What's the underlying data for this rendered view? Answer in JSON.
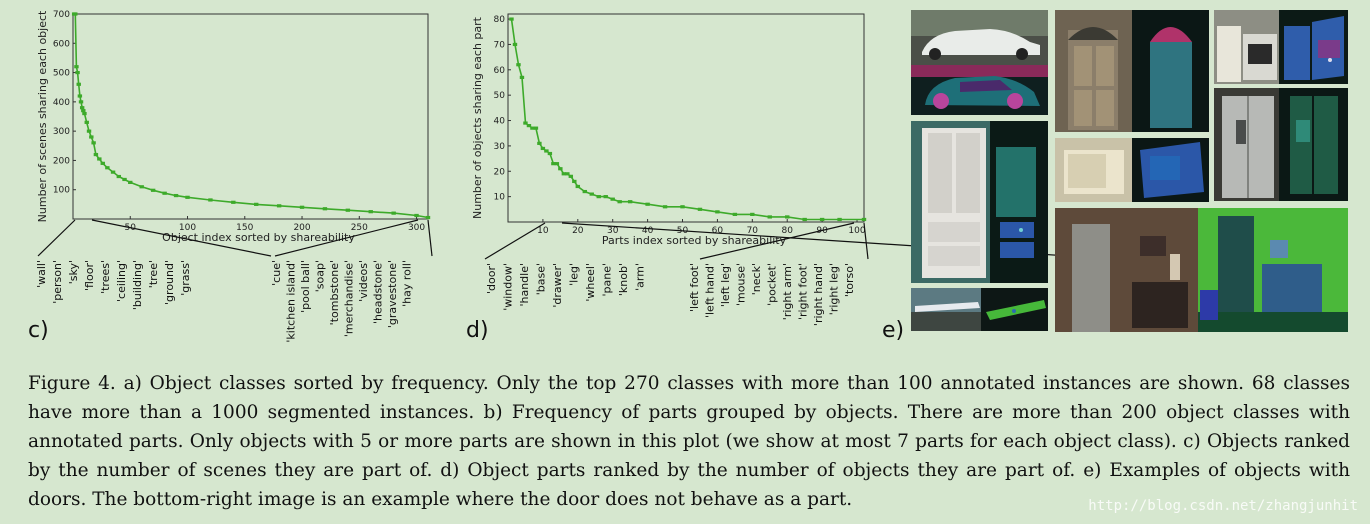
{
  "charts": [
    {
      "id": "c",
      "panel_label": "c)",
      "chart_data": {
        "type": "line",
        "xlabel": "Object index sorted by shareability",
        "ylabel": "Number of scenes sharing each object",
        "xlim": [
          0,
          310
        ],
        "ylim": [
          0,
          700
        ],
        "xticks": [
          50,
          100,
          150,
          200,
          250,
          300
        ],
        "yticks": [
          100,
          200,
          300,
          400,
          500,
          600,
          700
        ],
        "grid": false,
        "color": "#3daa2a",
        "x": [
          1,
          2,
          3,
          4,
          5,
          6,
          7,
          8,
          9,
          10,
          12,
          14,
          16,
          18,
          20,
          23,
          26,
          30,
          35,
          40,
          45,
          50,
          60,
          70,
          80,
          90,
          100,
          120,
          140,
          160,
          180,
          200,
          220,
          240,
          260,
          280,
          300,
          310
        ],
        "y": [
          700,
          700,
          520,
          500,
          460,
          420,
          400,
          380,
          370,
          360,
          330,
          300,
          280,
          260,
          220,
          205,
          190,
          175,
          160,
          145,
          135,
          125,
          110,
          98,
          88,
          80,
          74,
          65,
          57,
          50,
          45,
          40,
          35,
          30,
          25,
          20,
          12,
          5
        ],
        "labels_left": [
          "'wall'",
          "'person'",
          "'sky'",
          "'floor'",
          "'trees'",
          "'ceiling'",
          "'building'",
          "'tree'",
          "'ground'",
          "'grass'"
        ],
        "labels_right": [
          "'cue'",
          "'kitchen island'",
          "'pool ball'",
          "'soap'",
          "'tombstone'",
          "'merchandise'",
          "'videos'",
          "'headstone'",
          "'gravestone'",
          "'hay roll'"
        ]
      }
    },
    {
      "id": "d",
      "panel_label": "d)",
      "chart_data": {
        "type": "line",
        "xlabel": "Parts index sorted by shareability",
        "ylabel": "Number of objects sharing each part",
        "xlim": [
          0,
          102
        ],
        "ylim": [
          0,
          82
        ],
        "xticks": [
          10,
          20,
          30,
          40,
          50,
          60,
          70,
          80,
          90,
          100
        ],
        "yticks": [
          10,
          20,
          30,
          40,
          50,
          60,
          70,
          80
        ],
        "grid": false,
        "color": "#3daa2a",
        "x": [
          1,
          2,
          3,
          4,
          5,
          6,
          7,
          8,
          9,
          10,
          11,
          12,
          13,
          14,
          15,
          16,
          17,
          18,
          19,
          20,
          22,
          24,
          26,
          28,
          30,
          32,
          35,
          40,
          45,
          50,
          55,
          60,
          65,
          70,
          75,
          80,
          85,
          90,
          95,
          102
        ],
        "y": [
          80,
          70,
          62,
          57,
          39,
          38,
          37,
          37,
          31,
          29,
          28,
          27,
          23,
          23,
          21,
          19,
          19,
          18,
          16,
          14,
          12,
          11,
          10,
          10,
          9,
          8,
          8,
          7,
          6,
          6,
          5,
          4,
          3,
          3,
          2,
          2,
          1,
          1,
          1,
          1
        ],
        "labels_left": [
          "'door'",
          "'window'",
          "'handle'",
          "'base'",
          "'drawer'",
          "'leg'",
          "'wheel'",
          "'pane'",
          "'knob'",
          "'arm'"
        ],
        "labels_right": [
          "'left foot'",
          "'left hand'",
          "'left leg'",
          "'mouse'",
          "'neck'",
          "'pocket'",
          "'right arm'",
          "'right foot'",
          "'right hand'",
          "'right leg'",
          "'torso'"
        ]
      }
    }
  ],
  "panel_e_label": "e)",
  "caption": "Figure 4. a) Object classes sorted by frequency. Only the top 270 classes with more than 100 annotated instances are shown. 68 classes have more than a 1000 segmented instances. b) Frequency of parts grouped by objects. There are more than 200 object classes with annotated parts. Only objects with 5 or more parts are shown in this plot (we show at most 7 parts for each object class). c) Objects ranked by the number of scenes they are part of. d) Object parts ranked by the number of objects they are part of. e) Examples of objects with doors. The bottom-right image is an example where the door does not behave as a part.",
  "watermark": "http://blog.csdn.net/zhangjunhit"
}
